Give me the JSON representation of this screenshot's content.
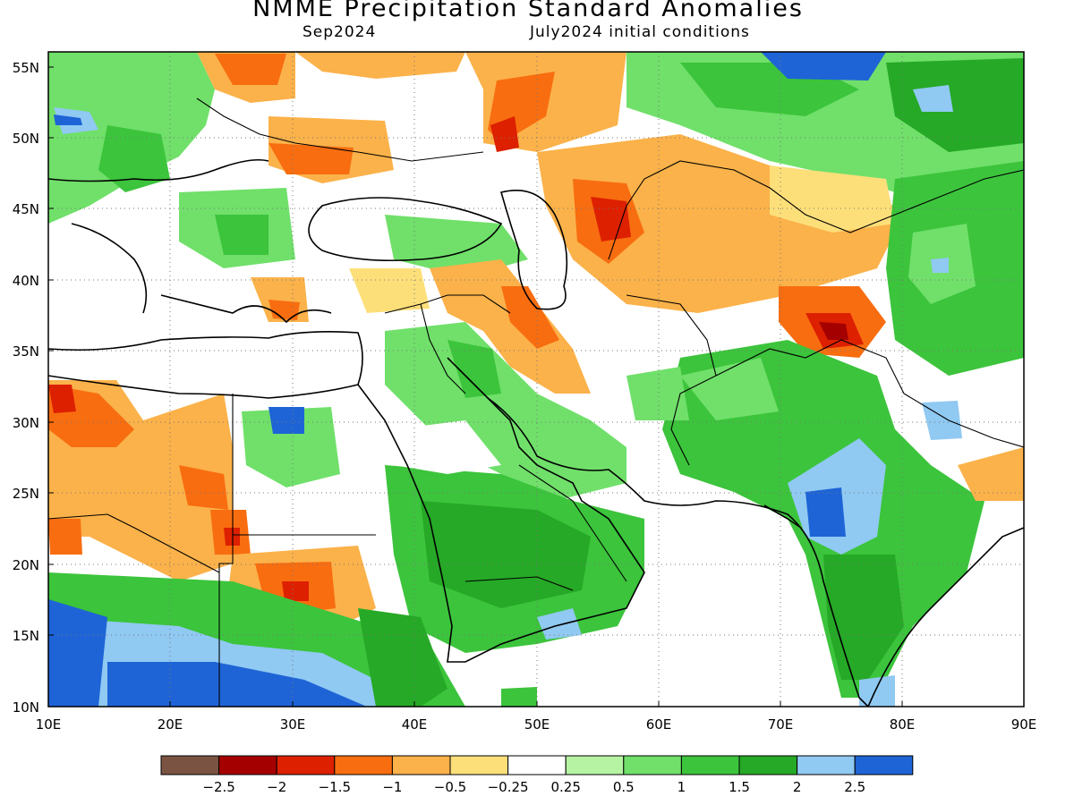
{
  "header": {
    "title": "NMME Precipitation Standard Anomalies",
    "target_month": "Sep2024",
    "initial_conditions": "July2024 initial conditions"
  },
  "axes": {
    "x_ticks": [
      "10E",
      "20E",
      "30E",
      "40E",
      "50E",
      "60E",
      "70E",
      "80E",
      "90E"
    ],
    "y_ticks": [
      "55N",
      "50N",
      "45N",
      "40N",
      "35N",
      "30N",
      "25N",
      "20N",
      "15N",
      "10N"
    ],
    "lon_range": [
      10,
      90
    ],
    "lat_range": [
      10,
      56
    ],
    "grid": "dotted"
  },
  "legend": {
    "labels": [
      "−2.5",
      "−2",
      "−1.5",
      "−1",
      "−0.5",
      "−0.25",
      "0.25",
      "0.5",
      "1",
      "1.5",
      "2",
      "2.5"
    ],
    "colors": [
      "#7a5343",
      "#a50000",
      "#dd2000",
      "#f86d10",
      "#fbb24a",
      "#fddf7a",
      "#ffffff",
      "#b6f4a3",
      "#70e06a",
      "#3cc43c",
      "#26a926",
      "#90c9f2",
      "#1e64d6"
    ]
  }
}
